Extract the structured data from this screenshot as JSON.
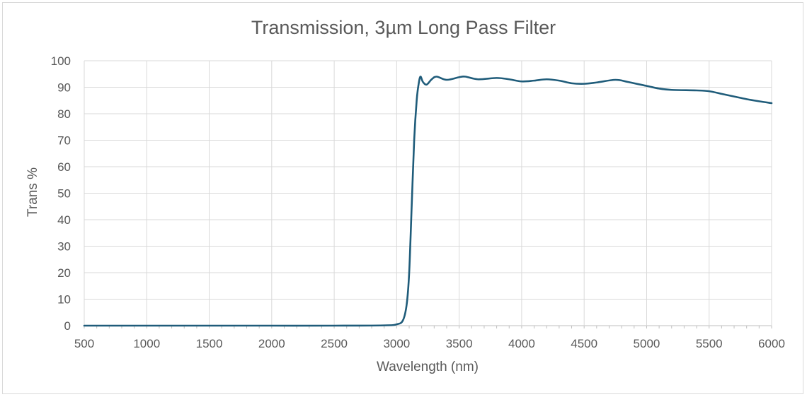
{
  "chart_data": {
    "type": "line",
    "title": "Transmission, 3µm Long Pass Filter",
    "xlabel": "Wavelength (nm)",
    "ylabel": "Trans %",
    "xlim": [
      500,
      6000
    ],
    "ylim": [
      0,
      100
    ],
    "x_ticks": [
      500,
      1000,
      1500,
      2000,
      2500,
      3000,
      3500,
      4000,
      4500,
      5000,
      5500,
      6000
    ],
    "y_ticks": [
      0,
      10,
      20,
      30,
      40,
      50,
      60,
      70,
      80,
      90,
      100
    ],
    "grid": true,
    "series": [
      {
        "color": "#1f5c7a",
        "points": [
          [
            500,
            0
          ],
          [
            1000,
            0
          ],
          [
            1500,
            0
          ],
          [
            2000,
            0
          ],
          [
            2500,
            0
          ],
          [
            2900,
            0.1
          ],
          [
            3000,
            0.5
          ],
          [
            3050,
            2
          ],
          [
            3080,
            8
          ],
          [
            3100,
            20
          ],
          [
            3120,
            45
          ],
          [
            3140,
            70
          ],
          [
            3160,
            85
          ],
          [
            3175,
            91
          ],
          [
            3190,
            94
          ],
          [
            3210,
            92
          ],
          [
            3240,
            91
          ],
          [
            3280,
            93
          ],
          [
            3320,
            94
          ],
          [
            3400,
            92.8
          ],
          [
            3500,
            93.8
          ],
          [
            3550,
            94
          ],
          [
            3650,
            93
          ],
          [
            3800,
            93.5
          ],
          [
            3900,
            93
          ],
          [
            4000,
            92.2
          ],
          [
            4100,
            92.5
          ],
          [
            4200,
            93
          ],
          [
            4300,
            92.5
          ],
          [
            4400,
            91.5
          ],
          [
            4500,
            91.3
          ],
          [
            4600,
            91.8
          ],
          [
            4750,
            92.8
          ],
          [
            4850,
            92
          ],
          [
            5000,
            90.5
          ],
          [
            5100,
            89.5
          ],
          [
            5200,
            89
          ],
          [
            5400,
            88.8
          ],
          [
            5500,
            88.5
          ],
          [
            5600,
            87.5
          ],
          [
            5700,
            86.5
          ],
          [
            5800,
            85.5
          ],
          [
            5900,
            84.7
          ],
          [
            6000,
            84
          ]
        ]
      }
    ]
  }
}
